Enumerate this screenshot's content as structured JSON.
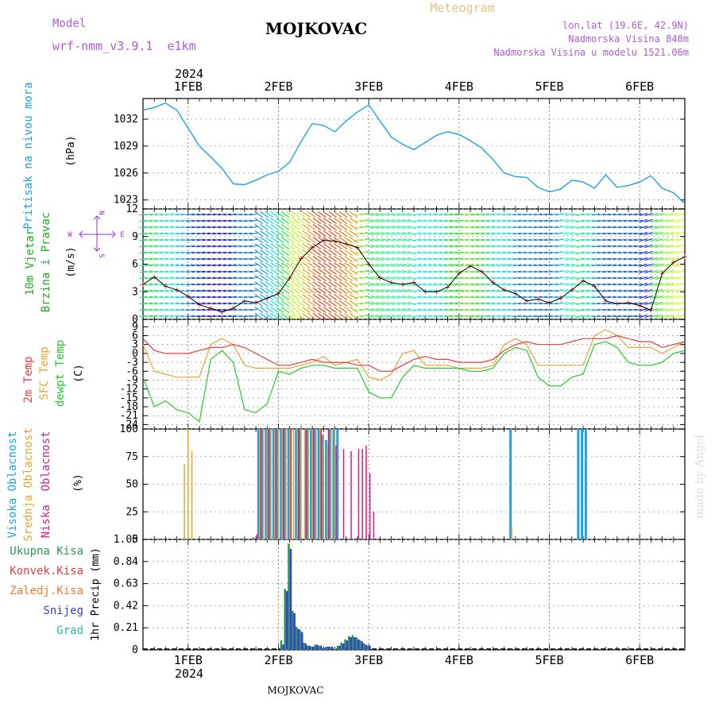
{
  "header": {
    "meteogram_label": "Meteogram",
    "station_title": "MOJKOVAC",
    "model_label": "Model",
    "model_name": "wrf-nmm_v3.9.1  e1km",
    "lonlat": "lon,lat (19.6E, 42.9N)",
    "elevation": "Nadmorska Visina 848m",
    "model_elevation": "Nadmorska Visina u modelu 1521.06m",
    "footer_station": "MOJKOVAC",
    "watermark": "made by Angel"
  },
  "time_axis": {
    "year_top": "2024",
    "year_bottom": "2024",
    "days": [
      {
        "label": "1FEB",
        "t": 0
      },
      {
        "label": "2FEB",
        "t": 24
      },
      {
        "label": "3FEB",
        "t": 48
      },
      {
        "label": "4FEB",
        "t": 72
      },
      {
        "label": "5FEB",
        "t": 96
      },
      {
        "label": "6FEB",
        "t": 120
      }
    ],
    "range_hours": [
      -12,
      132
    ]
  },
  "colors": {
    "pressure": "#1ca3e6",
    "temp2m": "#e83c3c",
    "sfc_temp": "#e6a532",
    "dewpt": "#22cc22",
    "high_cloud": "#1ca3e6",
    "mid_cloud": "#e6a532",
    "low_cloud": "#d0208a",
    "precip_total": "#2a9a4a",
    "precip_conv": "#e83c3c",
    "precip_freezing": "#f07a30",
    "precip_snow": "#3a3ae0",
    "precip_grad": "#22bbaa",
    "wind_title": "#22aa22",
    "wind_compass": "#9933cc"
  },
  "panels": {
    "pressure_label": "Pritisak na nivou mora",
    "pressure_unit": "(hPa)",
    "wind_label_1": "10m Vjetar",
    "wind_label_2": "Brzina i Pravac",
    "wind_unit": "(m/s)",
    "wind_compass_w": "W",
    "wind_compass_e": "E",
    "wind_compass_n": "N",
    "wind_compass_s": "S",
    "temp_label_1": "2m Temp",
    "temp_label_2": "SFC Temp",
    "temp_label_3": "dewpt Temp",
    "temp_unit": "(C)",
    "cloud_label_1": "Visoka Oblacnost",
    "cloud_label_2": "Srednja Oblacnost",
    "cloud_label_3": "Niska  Oblacnost",
    "cloud_unit": "(%)",
    "precip_unit": "1hr Precip (mm)",
    "precip_legend": [
      {
        "name": "Ukupna  Kisa",
        "color_key": "precip_total"
      },
      {
        "name": "Konvek.Kisa",
        "color_key": "precip_conv"
      },
      {
        "name": "Zaledj.Kisa",
        "color_key": "precip_freezing"
      },
      {
        "name": "Snijeg",
        "color_key": "precip_snow"
      },
      {
        "name": "Grad",
        "color_key": "precip_grad"
      }
    ]
  },
  "chart_data": [
    {
      "type": "line",
      "ylabel": "(hPa)",
      "ylim": [
        1022,
        1034.3
      ],
      "yticks": [
        1023,
        1026,
        1029,
        1032
      ],
      "series": [
        {
          "name": "Pritisak na nivou mora",
          "x": [
            -12,
            -9,
            -6,
            -3,
            0,
            3,
            6,
            9,
            12,
            15,
            18,
            21,
            24,
            27,
            30,
            33,
            36,
            39,
            42,
            45,
            48,
            51,
            54,
            57,
            60,
            63,
            66,
            69,
            72,
            75,
            78,
            81,
            84,
            87,
            90,
            93,
            96,
            99,
            102,
            105,
            108,
            111,
            114,
            117,
            120,
            123,
            126,
            129,
            132
          ],
          "y": [
            1033.0,
            1033.3,
            1033.8,
            1033.0,
            1031.0,
            1029.0,
            1027.8,
            1026.5,
            1024.8,
            1024.7,
            1025.2,
            1025.8,
            1026.2,
            1027.2,
            1029.5,
            1031.5,
            1031.3,
            1030.6,
            1031.8,
            1032.8,
            1033.6,
            1031.8,
            1030.0,
            1029.2,
            1028.6,
            1029.4,
            1030.2,
            1030.6,
            1030.3,
            1029.6,
            1028.8,
            1027.5,
            1026.0,
            1025.6,
            1025.5,
            1024.4,
            1023.9,
            1024.2,
            1025.2,
            1025.0,
            1024.3,
            1025.8,
            1024.4,
            1024.6,
            1025.0,
            1025.7,
            1024.3,
            1023.8,
            1022.6
          ]
        }
      ]
    },
    {
      "type": "line",
      "ylabel": "(m/s)",
      "ylim": [
        0,
        12
      ],
      "yticks": [
        0,
        3,
        6,
        9,
        12
      ],
      "series": [
        {
          "name": "10m Vjetar",
          "x": [
            -12,
            -9,
            -6,
            -3,
            0,
            3,
            6,
            9,
            12,
            15,
            18,
            21,
            24,
            27,
            30,
            33,
            36,
            39,
            42,
            45,
            48,
            51,
            54,
            57,
            60,
            63,
            66,
            69,
            72,
            75,
            78,
            81,
            84,
            87,
            90,
            93,
            96,
            99,
            102,
            105,
            108,
            111,
            114,
            117,
            120,
            123,
            126,
            129,
            132
          ],
          "y": [
            3.8,
            4.6,
            3.6,
            3.2,
            2.5,
            1.6,
            1.2,
            0.8,
            1.2,
            2.0,
            1.8,
            2.3,
            2.8,
            4.5,
            6.6,
            7.8,
            8.6,
            8.5,
            8.2,
            7.8,
            6.0,
            4.5,
            4.0,
            3.8,
            4.0,
            3.0,
            3.0,
            3.5,
            5.0,
            5.8,
            5.2,
            4.0,
            3.2,
            2.8,
            2.0,
            2.2,
            1.8,
            2.3,
            3.2,
            4.2,
            3.6,
            2.0,
            1.7,
            1.8,
            1.5,
            1.0,
            5.0,
            6.2,
            6.8
          ]
        }
      ]
    },
    {
      "type": "line",
      "ylabel": "(C)",
      "ylim": [
        -25.5,
        11.5
      ],
      "yticks": [
        -24,
        -21,
        -18,
        -15,
        -12,
        -9,
        -6,
        -3,
        0,
        3,
        6,
        9
      ],
      "series": [
        {
          "name": "2m Temp",
          "x": [
            -12,
            -9,
            -6,
            -3,
            0,
            3,
            6,
            9,
            12,
            15,
            18,
            21,
            24,
            27,
            30,
            33,
            36,
            39,
            42,
            45,
            48,
            51,
            54,
            57,
            60,
            63,
            66,
            69,
            72,
            75,
            78,
            81,
            84,
            87,
            90,
            93,
            96,
            99,
            102,
            105,
            108,
            111,
            114,
            117,
            120,
            123,
            126,
            129,
            132
          ],
          "y": [
            5,
            1,
            0,
            0,
            0,
            1,
            2,
            2,
            3,
            2,
            0,
            -2,
            -4,
            -4,
            -3,
            -2,
            -3,
            -3,
            -3,
            -4,
            -4,
            -6,
            -6,
            -4,
            -2,
            -1,
            -2,
            -2,
            -3,
            -3,
            -3,
            -2,
            1,
            3,
            4,
            3,
            3,
            3,
            4,
            5,
            5,
            5,
            6,
            5,
            4,
            4,
            2,
            3,
            4
          ]
        },
        {
          "name": "SFC Temp",
          "x": [
            -12,
            -9,
            -6,
            -3,
            0,
            3,
            6,
            9,
            12,
            15,
            18,
            21,
            24,
            27,
            30,
            33,
            36,
            39,
            42,
            45,
            48,
            51,
            54,
            57,
            60,
            63,
            66,
            69,
            72,
            75,
            78,
            81,
            84,
            87,
            90,
            93,
            96,
            99,
            102,
            105,
            108,
            111,
            114,
            117,
            120,
            123,
            126,
            129,
            132
          ],
          "y": [
            3,
            -6,
            -7,
            -8,
            -8,
            -8,
            3,
            5,
            3,
            -4,
            -5,
            -5,
            -5,
            -5,
            -4,
            -3,
            -1,
            -4,
            -3,
            -2,
            -8,
            -9,
            -7,
            0,
            1,
            -4,
            -4,
            -4,
            -5,
            -5,
            -5,
            -4,
            3,
            5,
            3,
            -4,
            -4,
            -4,
            -4,
            -4,
            6,
            8,
            6,
            2,
            2,
            2,
            0,
            2,
            4
          ]
        },
        {
          "name": "dewpt Temp",
          "x": [
            -12,
            -9,
            -6,
            -3,
            0,
            3,
            6,
            9,
            12,
            15,
            18,
            21,
            24,
            27,
            30,
            33,
            36,
            39,
            42,
            45,
            48,
            51,
            54,
            57,
            60,
            63,
            66,
            69,
            72,
            75,
            78,
            81,
            84,
            87,
            90,
            93,
            96,
            99,
            102,
            105,
            108,
            111,
            114,
            117,
            120,
            123,
            126,
            129,
            132
          ],
          "y": [
            -8,
            -18,
            -16,
            -19,
            -20,
            -23,
            -2,
            1,
            -3,
            -19,
            -20,
            -17,
            -6,
            -7,
            -5,
            -4,
            -4,
            -5,
            -5,
            -5,
            -13,
            -15,
            -15,
            -8,
            -4,
            -5,
            -5,
            -5,
            -5,
            -6,
            -6,
            -5,
            0,
            2,
            1,
            -8,
            -11,
            -11,
            -8,
            -7,
            3,
            4,
            2,
            -3,
            -4,
            -4,
            -3,
            0,
            1
          ]
        }
      ]
    },
    {
      "type": "bar",
      "ylabel": "(%)",
      "ylim": [
        0,
        100
      ],
      "yticks": [
        0,
        25,
        50,
        75,
        100
      ],
      "series": [
        {
          "name": "Visoka Oblacnost",
          "x": [
            19,
            20,
            21,
            22,
            23,
            24,
            25,
            26,
            27,
            29,
            30,
            32,
            33,
            34,
            35,
            36,
            37,
            38,
            39,
            40,
            86,
            104,
            105,
            106
          ],
          "y": [
            100,
            100,
            100,
            100,
            100,
            100,
            100,
            100,
            100,
            100,
            100,
            100,
            100,
            100,
            100,
            95,
            90,
            100,
            100,
            100,
            100,
            100,
            100,
            100
          ]
        },
        {
          "name": "Srednja Oblacnost",
          "x": [
            -1,
            0,
            1,
            19,
            20,
            21,
            22,
            23,
            24,
            25,
            26,
            27,
            28,
            29,
            30,
            31,
            32,
            33,
            34,
            35,
            36,
            37,
            38,
            39,
            86
          ],
          "y": [
            68,
            100,
            80,
            100,
            100,
            100,
            100,
            100,
            100,
            100,
            100,
            100,
            100,
            100,
            100,
            100,
            100,
            100,
            100,
            100,
            95,
            85,
            100,
            100,
            12
          ]
        },
        {
          "name": "Niska  Oblacnost",
          "x": [
            17,
            18,
            19,
            21,
            23,
            25,
            27,
            29,
            31,
            33,
            35,
            37,
            39,
            41,
            43,
            45,
            46,
            47,
            48,
            49
          ],
          "y": [
            2,
            5,
            100,
            100,
            100,
            100,
            100,
            100,
            100,
            100,
            100,
            100,
            85,
            82,
            80,
            82,
            82,
            85,
            60,
            25
          ]
        }
      ]
    },
    {
      "type": "bar",
      "ylabel": "1hr Precip (mm)",
      "ylim": [
        0,
        1.05
      ],
      "yticks": [
        0,
        0.21,
        0.42,
        0.63,
        0.84,
        1.05
      ],
      "series": [
        {
          "name": "Ukupna  Kisa",
          "x": [
            25,
            26,
            27,
            28,
            29,
            30,
            31,
            32,
            33,
            34,
            35,
            36,
            37,
            38,
            40,
            41,
            42,
            43,
            44,
            45,
            46,
            47,
            48
          ],
          "y": [
            0.09,
            0.58,
            1.01,
            0.37,
            0.22,
            0.19,
            0.07,
            0.04,
            0.03,
            0.05,
            0.04,
            0.02,
            0.03,
            0.03,
            0.04,
            0.07,
            0.1,
            0.13,
            0.14,
            0.12,
            0.09,
            0.06,
            0.04
          ]
        },
        {
          "name": "Snijeg",
          "x": [
            25,
            26,
            27,
            28,
            29,
            30,
            31,
            32,
            33,
            34,
            35,
            36,
            37,
            38,
            40,
            41,
            42,
            43,
            44,
            45,
            46,
            47,
            48
          ],
          "y": [
            0.05,
            0.56,
            0.96,
            0.35,
            0.2,
            0.17,
            0.06,
            0.04,
            0.03,
            0.05,
            0.04,
            0.02,
            0.03,
            0.03,
            0.04,
            0.06,
            0.09,
            0.12,
            0.12,
            0.1,
            0.08,
            0.05,
            0.04
          ]
        }
      ]
    }
  ]
}
